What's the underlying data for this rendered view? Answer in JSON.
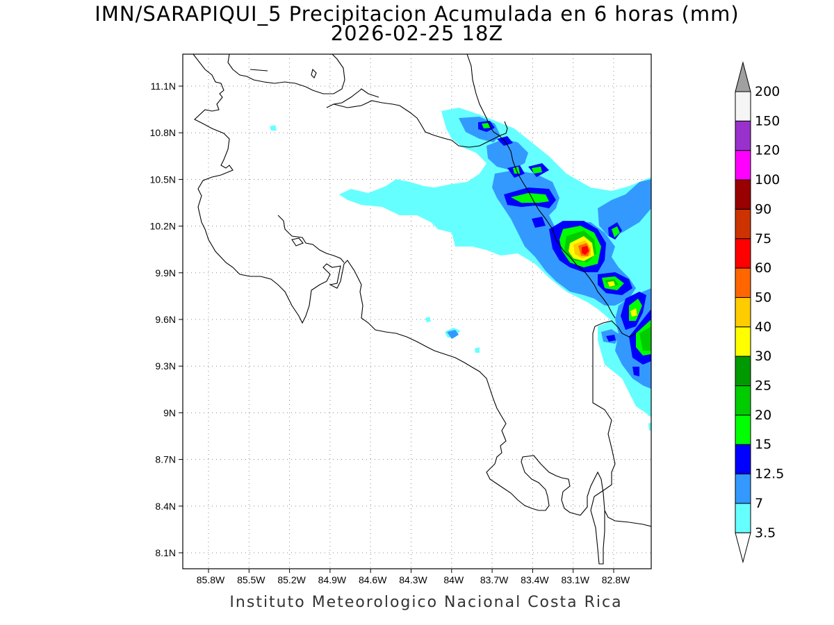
{
  "title": {
    "line1": "IMN/SARAPIQUI_5 Precipitacion Acumulada en 6 horas (mm)",
    "line2": "2026-02-25 18Z"
  },
  "credit": "Instituto Meteorologico Nacional Costa Rica",
  "map": {
    "lat_ticks": [
      "11.1N",
      "10.8N",
      "10.5N",
      "10.2N",
      "9.9N",
      "9.6N",
      "9.3N",
      "9N",
      "8.7N",
      "8.4N",
      "8.1N"
    ],
    "lon_ticks": [
      "85.8W",
      "85.5W",
      "85.2W",
      "84.9W",
      "84.6W",
      "84.3W",
      "84W",
      "83.7W",
      "83.4W",
      "83.1W",
      "82.8W"
    ],
    "grid": "dotted"
  },
  "colorbar": {
    "labels": [
      "200",
      "150",
      "120",
      "100",
      "90",
      "75",
      "60",
      "50",
      "40",
      "30",
      "25",
      "20",
      "15",
      "12.5",
      "7",
      "3.5"
    ],
    "colors_top_to_bottom": [
      "#a0a0a0",
      "#f5f5f5",
      "#9932cc",
      "#ff00ff",
      "#990000",
      "#cc3300",
      "#ff0000",
      "#ff6600",
      "#ffcc00",
      "#ffff00",
      "#009900",
      "#00cc00",
      "#00ff00",
      "#0000ff",
      "#3399ff",
      "#66ffff",
      "#ffffff"
    ]
  }
}
